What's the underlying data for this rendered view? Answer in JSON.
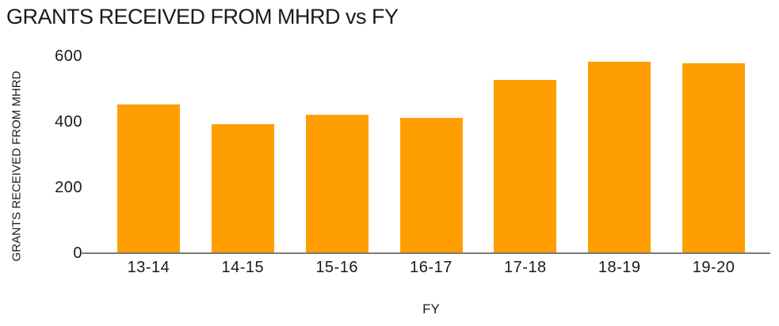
{
  "chart_data": {
    "type": "bar",
    "title": "GRANTS RECEIVED FROM MHRD vs FY",
    "xlabel": "FY",
    "ylabel": "GRANTS RECEIVED FROM MHRD",
    "categories": [
      "13-14",
      "14-15",
      "15-16",
      "16-17",
      "17-18",
      "18-19",
      "19-20"
    ],
    "values": [
      450,
      390,
      420,
      410,
      525,
      580,
      575
    ],
    "ylim": [
      0,
      600
    ],
    "yticks": [
      0,
      200,
      400,
      600
    ],
    "bar_color": "#FF9E00",
    "axis_color": "#7A7A7A",
    "text_color": "#1A1A1A",
    "background": "#FFFFFF",
    "grid": false,
    "legend": false
  }
}
